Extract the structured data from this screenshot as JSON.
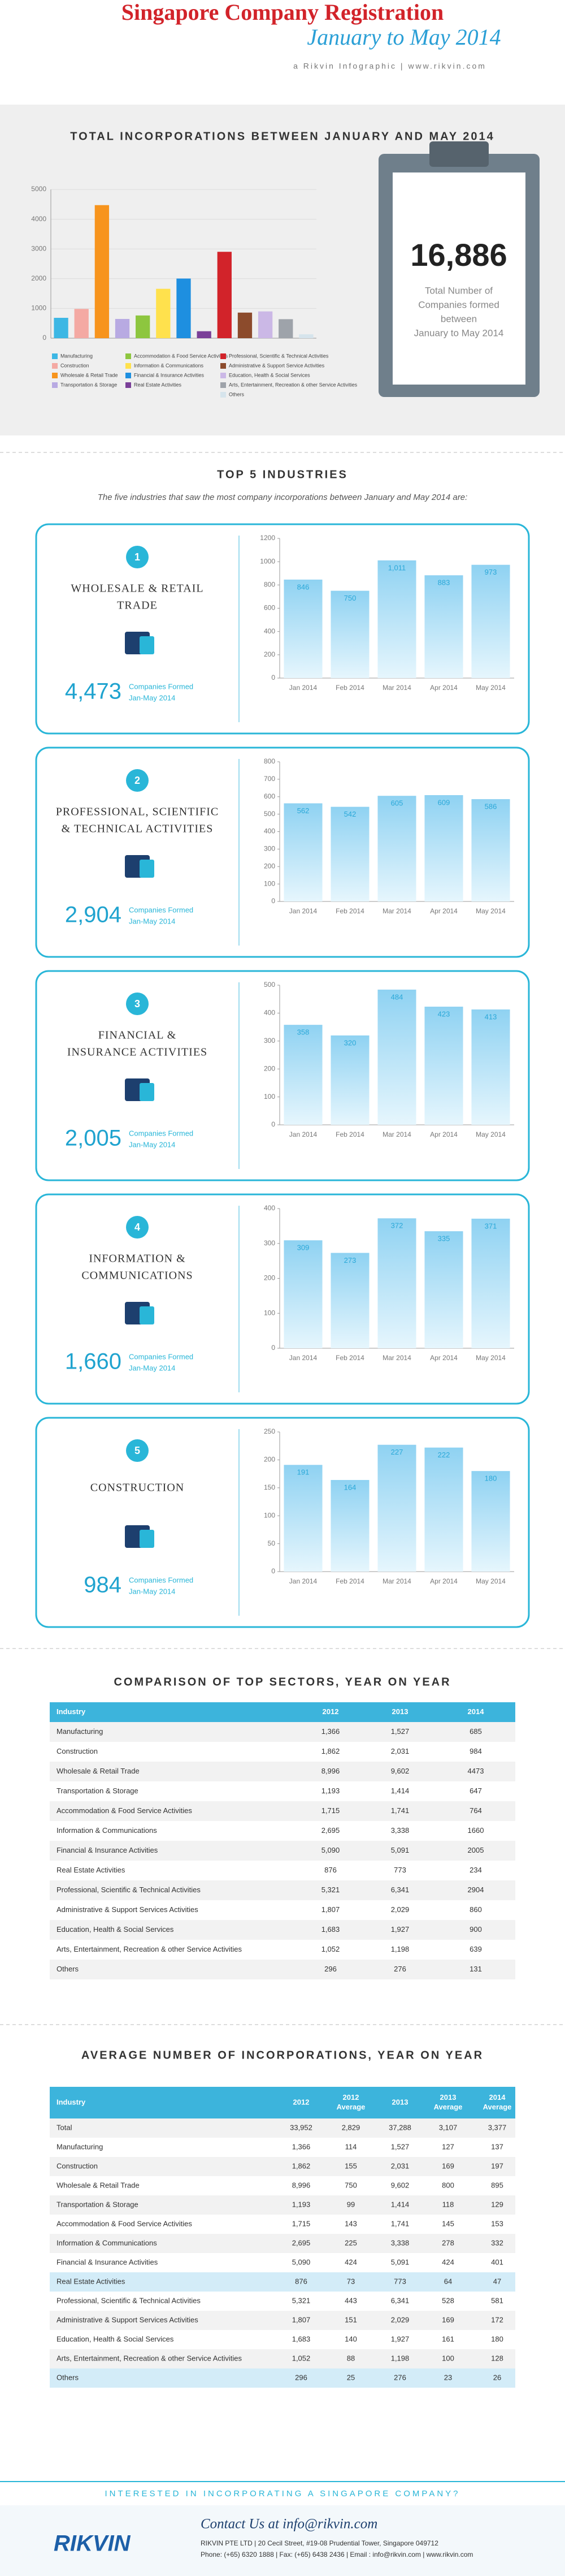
{
  "header": {
    "title": "Singapore Company Registration",
    "subtitle": "January to May 2014",
    "tagline": "a Rikvin Infographic | www.rikvin.com"
  },
  "chart_data": [
    {
      "type": "bar",
      "title": "TOTAL INCORPORATIONS BETWEEN JANUARY AND MAY 2014",
      "categories": [
        "Manufacturing",
        "Construction",
        "Wholesale & Retail Trade",
        "Transportation  & Storage",
        "Accommodation & Food Service Activities",
        "Information & Communications",
        "Financial & Insurance Activities",
        "Real Estate Activities",
        "Professional, Scientific & Technical Activities",
        "Administrative & Support Service Activities",
        "Education, Health & Social Services",
        "Arts, Entertainment, Recreation & other Service Activities",
        "Others"
      ],
      "values": [
        685,
        984,
        4473,
        647,
        764,
        1660,
        2005,
        234,
        2904,
        860,
        900,
        639,
        131
      ],
      "colors": [
        "#3db7e4",
        "#f4a9a3",
        "#f7941d",
        "#b8aae2",
        "#8dc63f",
        "#ffe14d",
        "#1e8fe0",
        "#7a3f98",
        "#d2232a",
        "#8c4b2c",
        "#cbb8e6",
        "#9ea3aa",
        "#d6e4ec"
      ],
      "ylim": [
        0,
        5000
      ],
      "yticks": [
        0,
        1000,
        2000,
        3000,
        4000,
        5000
      ],
      "grid": true,
      "legend": "bottom"
    },
    {
      "type": "bar",
      "categories": [
        "Jan 2014",
        "Feb 2014",
        "Mar 2014",
        "Apr 2014",
        "May 2014"
      ],
      "values": [
        846,
        750,
        1011,
        883,
        973
      ],
      "value_labels": [
        "846",
        "750",
        "1,011",
        "883",
        "973"
      ],
      "ylim": [
        0,
        1200
      ],
      "yticks": [
        0,
        200,
        400,
        600,
        800,
        1000,
        1200
      ],
      "color": "#a6dcf5"
    },
    {
      "type": "bar",
      "categories": [
        "Jan 2014",
        "Feb 2014",
        "Mar 2014",
        "Apr 2014",
        "May 2014"
      ],
      "values": [
        562,
        542,
        605,
        609,
        586
      ],
      "ylim": [
        0,
        800
      ],
      "yticks": [
        0,
        100,
        200,
        300,
        400,
        500,
        600,
        700,
        800
      ],
      "color": "#a6dcf5"
    },
    {
      "type": "bar",
      "categories": [
        "Jan 2014",
        "Feb 2014",
        "Mar 2014",
        "Apr 2014",
        "May 2014"
      ],
      "values": [
        358,
        320,
        484,
        423,
        413
      ],
      "ylim": [
        0,
        500
      ],
      "yticks": [
        0,
        100,
        200,
        300,
        400,
        500
      ],
      "color": "#a6dcf5"
    },
    {
      "type": "bar",
      "categories": [
        "Jan 2014",
        "Feb 2014",
        "Mar 2014",
        "Apr 2014",
        "May 2014"
      ],
      "values": [
        309,
        273,
        372,
        335,
        371
      ],
      "ylim": [
        0,
        400
      ],
      "yticks": [
        0,
        100,
        200,
        300,
        400
      ],
      "color": "#a6dcf5"
    },
    {
      "type": "bar",
      "categories": [
        "Jan 2014",
        "Feb 2014",
        "Mar 2014",
        "Apr 2014",
        "May 2014"
      ],
      "values": [
        191,
        164,
        227,
        222,
        180
      ],
      "ylim": [
        0,
        250
      ],
      "yticks": [
        0,
        50,
        100,
        150,
        200,
        250
      ],
      "color": "#a6dcf5"
    }
  ],
  "summary": {
    "total": "16,886",
    "lines": [
      "Total Number of",
      "Companies formed",
      "between",
      "January to May 2014"
    ]
  },
  "top5": {
    "title": "TOP 5 INDUSTRIES",
    "subtitle": "The five industries that saw the most company incorporations between January and May 2014 are:",
    "caption": [
      "Companies Formed",
      "Jan-May 2014"
    ],
    "industries": [
      {
        "rank": "1",
        "name": [
          "WHOLESALE & RETAIL",
          "TRADE"
        ],
        "total": "4,473"
      },
      {
        "rank": "2",
        "name": [
          "PROFESSIONAL, SCIENTIFIC",
          "& TECHNICAL ACTIVITIES"
        ],
        "total": "2,904"
      },
      {
        "rank": "3",
        "name": [
          "FINANCIAL &",
          "INSURANCE ACTIVITIES"
        ],
        "total": "2,005"
      },
      {
        "rank": "4",
        "name": [
          "INFORMATION &",
          "COMMUNICATIONS"
        ],
        "total": "1,660"
      },
      {
        "rank": "5",
        "name": [
          "CONSTRUCTION"
        ],
        "total": "984"
      }
    ]
  },
  "comparison": {
    "title": "COMPARISON OF TOP SECTORS, YEAR ON YEAR",
    "columns": [
      "Industry",
      "2012",
      "2013",
      "2014"
    ],
    "rows": [
      [
        "Manufacturing",
        "1,366",
        "1,527",
        "685"
      ],
      [
        "Construction",
        "1,862",
        "2,031",
        "984"
      ],
      [
        "Wholesale & Retail Trade",
        "8,996",
        "9,602",
        "4473"
      ],
      [
        "Transportation  & Storage",
        "1,193",
        "1,414",
        "647"
      ],
      [
        "Accommodation & Food Service Activities",
        "1,715",
        "1,741",
        "764"
      ],
      [
        "Information & Communications",
        "2,695",
        "3,338",
        "1660"
      ],
      [
        "Financial & Insurance Activities",
        "5,090",
        "5,091",
        "2005"
      ],
      [
        "Real Estate Activities",
        "876",
        "773",
        "234"
      ],
      [
        "Professional, Scientific & Technical Activities",
        "5,321",
        "6,341",
        "2904"
      ],
      [
        "Administrative & Support Services Activities",
        "1,807",
        "2,029",
        "860"
      ],
      [
        "Education, Health & Social Services",
        "1,683",
        "1,927",
        "900"
      ],
      [
        "Arts, Entertainment, Recreation & other Service Activities",
        "1,052",
        "1,198",
        "639"
      ],
      [
        "Others",
        "296",
        "276",
        "131"
      ]
    ]
  },
  "average": {
    "title": "AVERAGE NUMBER OF INCORPORATIONS, YEAR ON YEAR",
    "columns": [
      [
        "Industry"
      ],
      [
        "2012"
      ],
      [
        "2012",
        "Average"
      ],
      [
        "2013"
      ],
      [
        "2013",
        "Average"
      ],
      [
        "2014",
        "Average"
      ]
    ],
    "rows": [
      [
        "Total",
        "33,952",
        "2,829",
        "37,288",
        "3,107",
        "3,377"
      ],
      [
        "Manufacturing",
        "1,366",
        "114",
        "1,527",
        "127",
        "137"
      ],
      [
        "Construction",
        "1,862",
        "155",
        "2,031",
        "169",
        "197"
      ],
      [
        "Wholesale & Retail Trade",
        "8,996",
        "750",
        "9,602",
        "800",
        "895"
      ],
      [
        "Transportation  & Storage",
        "1,193",
        "99",
        "1,414",
        "118",
        "129"
      ],
      [
        "Accommodation & Food Service Activities",
        "1,715",
        "143",
        "1,741",
        "145",
        "153"
      ],
      [
        "Information & Communications",
        "2,695",
        "225",
        "3,338",
        "278",
        "332"
      ],
      [
        "Financial & Insurance Activities",
        "5,090",
        "424",
        "5,091",
        "424",
        "401"
      ],
      [
        "Real Estate Activities",
        "876",
        "73",
        "773",
        "64",
        "47"
      ],
      [
        "Professional, Scientific & Technical Activities",
        "5,321",
        "443",
        "6,341",
        "528",
        "581"
      ],
      [
        "Administrative & Support Services Activities",
        "1,807",
        "151",
        "2,029",
        "169",
        "172"
      ],
      [
        "Education, Health & Social Services",
        "1,683",
        "140",
        "1,927",
        "161",
        "180"
      ],
      [
        "Arts, Entertainment, Recreation & other Service Activities",
        "1,052",
        "88",
        "1,198",
        "100",
        "128"
      ],
      [
        "Others",
        "296",
        "25",
        "276",
        "23",
        "26"
      ]
    ]
  },
  "footer": {
    "banner": "INTERESTED IN INCORPORATING A SINGAPORE COMPANY?",
    "logo": "RIKVIN",
    "contact": "Contact Us at info@rikvin.com",
    "address": "RIKVIN PTE LTD | 20 Cecil Street, #19-08 Prudential Tower, Singapore 049712",
    "phone": "Phone: (+65) 6320 1888 | Fax: (+65) 6438 2436 | Email : info@rikvin.com | www.rikvin.com"
  }
}
